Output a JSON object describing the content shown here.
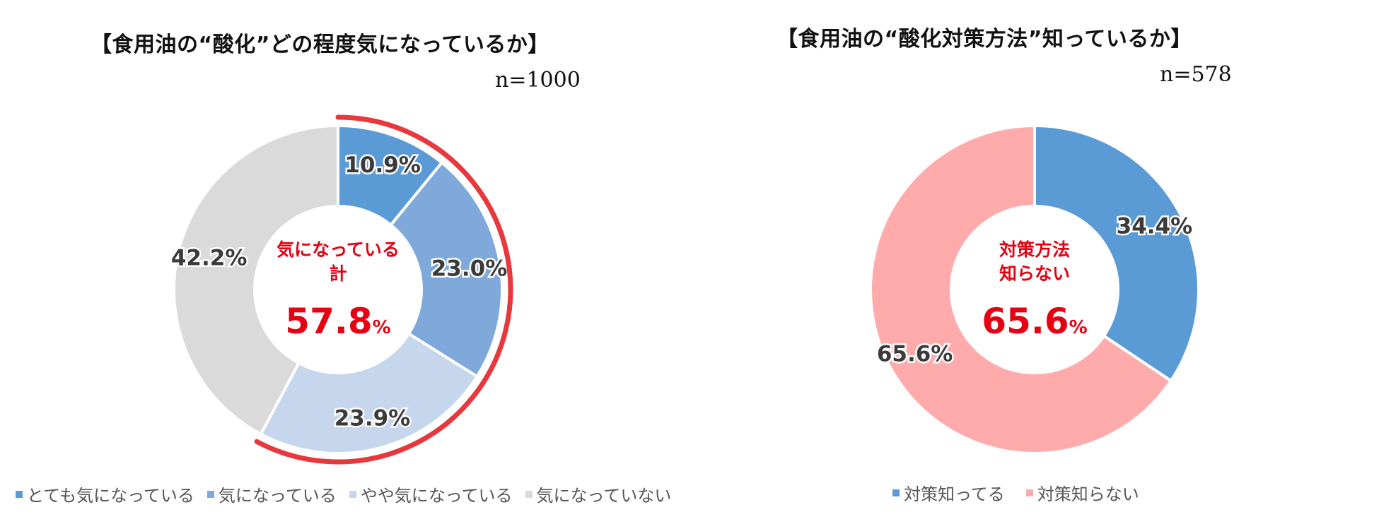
{
  "chart_data": [
    {
      "type": "donut",
      "title": "【食用油の“酸化”どの程度気になっているか】",
      "sample_size": "n=1000",
      "series": [
        {
          "name": "とても気になっている",
          "value": 10.9,
          "label": "10.9%",
          "color": "#5B9BD5"
        },
        {
          "name": "気になっている",
          "value": 23.0,
          "label": "23.0%",
          "color": "#7EA9DA"
        },
        {
          "name": "やや気になっている",
          "value": 23.9,
          "label": "23.9%",
          "color": "#C6D6EC"
        },
        {
          "name": "気になっていない",
          "value": 42.2,
          "label": "42.2%",
          "color": "#DADADA"
        }
      ],
      "center": {
        "line1": "気になっている",
        "line2": "計",
        "value": "57.8",
        "unit": "%"
      },
      "highlight": {
        "start_fraction": 0,
        "end_fraction": 0.578,
        "color": "#E8383D"
      }
    },
    {
      "type": "donut",
      "title": "【食用油の“酸化対策方法”知っているか】",
      "sample_size": "n=578",
      "series": [
        {
          "name": "対策知ってる",
          "value": 34.4,
          "label": "34.4%",
          "color": "#5B9BD5"
        },
        {
          "name": "対策知らない",
          "value": 65.6,
          "label": "65.6%",
          "color": "#FFABAB"
        }
      ],
      "center": {
        "line1": "対策方法",
        "line2": "知らない",
        "value": "65.6",
        "unit": "%"
      }
    }
  ],
  "colors": {
    "accent_red": "#E60012",
    "label_text": "#3A3A3A"
  }
}
